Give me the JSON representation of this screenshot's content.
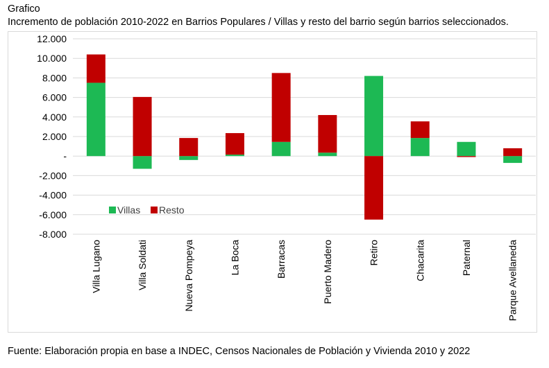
{
  "header": {
    "label": "Grafico",
    "title": "Incremento de población 2010-2022 en Barrios Populares / Villas y resto del barrio según barrios seleccionados."
  },
  "footer": {
    "source": "Fuente: Elaboración propia en base a INDEC, Censos Nacionales de Población y Vivienda 2010 y 2022"
  },
  "chart_data": {
    "type": "bar",
    "stacked": true,
    "categories": [
      "Villa Lugano",
      "Villa Soldati",
      "Nueva Pompeya",
      "La Boca",
      "Barracas",
      "Puerto Madero",
      "Retiro",
      "Chacarita",
      "Paternal",
      "Parque Avellaneda"
    ],
    "series": [
      {
        "name": "Villas",
        "color": "#1db954",
        "values": [
          7500,
          -1300,
          -400,
          150,
          1450,
          350,
          8200,
          1850,
          1450,
          -700
        ]
      },
      {
        "name": "Resto",
        "color": "#c00000",
        "values": [
          2900,
          6050,
          1850,
          2200,
          7050,
          3850,
          -6500,
          1700,
          -100,
          800
        ]
      }
    ],
    "y_ticks": [
      "12.000",
      "10.000",
      "8.000",
      "6.000",
      "4.000",
      "2.000",
      "-",
      "-2.000",
      "-4.000",
      "-6.000",
      "-8.000"
    ],
    "ylim": [
      -8000,
      12000
    ],
    "grid": true,
    "legend_position": "lower-left inside plot"
  }
}
